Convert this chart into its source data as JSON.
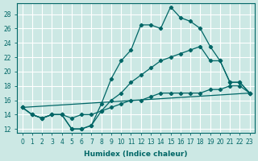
{
  "xlabel": "Humidex (Indice chaleur)",
  "bg_color": "#cce8e4",
  "grid_color": "#ffffff",
  "line_color": "#006666",
  "xlim": [
    -0.5,
    23.5
  ],
  "ylim": [
    11.5,
    29.5
  ],
  "yticks": [
    12,
    14,
    16,
    18,
    20,
    22,
    24,
    26,
    28
  ],
  "xticks": [
    0,
    1,
    2,
    3,
    4,
    5,
    6,
    7,
    8,
    9,
    10,
    11,
    12,
    13,
    14,
    15,
    16,
    17,
    18,
    19,
    20,
    21,
    22,
    23
  ],
  "series1_x": [
    0,
    1,
    2,
    3,
    4,
    5,
    6,
    7,
    8,
    9,
    10,
    11,
    12,
    13,
    14,
    15,
    16,
    17,
    18,
    19,
    20,
    21,
    22,
    23
  ],
  "series1_y": [
    15,
    14,
    13.5,
    14,
    14,
    12,
    12,
    12.5,
    15.5,
    19,
    21.5,
    23,
    26.5,
    26.5,
    26,
    29,
    27.5,
    27,
    26,
    23.5,
    21.5,
    18.5,
    18.5,
    17
  ],
  "series2_x": [
    0,
    1,
    2,
    3,
    4,
    5,
    6,
    7,
    8,
    9,
    10,
    11,
    12,
    13,
    14,
    15,
    16,
    17,
    18,
    19,
    20,
    21,
    22,
    23
  ],
  "series2_y": [
    15,
    14,
    13.5,
    14,
    14,
    12,
    12,
    12.5,
    14.5,
    16,
    17,
    18.5,
    19.5,
    20.5,
    21.5,
    22,
    22.5,
    23,
    23.5,
    21.5,
    21.5,
    18.5,
    18.5,
    17
  ],
  "series3_x": [
    0,
    1,
    2,
    3,
    4,
    5,
    6,
    7,
    8,
    9,
    10,
    11,
    12,
    13,
    14,
    15,
    16,
    17,
    18,
    19,
    20,
    21,
    22,
    23
  ],
  "series3_y": [
    15,
    14,
    13.5,
    14,
    14,
    13.5,
    14,
    14,
    14.5,
    15,
    15.5,
    16,
    16,
    16.5,
    17,
    17,
    17,
    17,
    17,
    17.5,
    17.5,
    18,
    18,
    17
  ],
  "series4_x": [
    0,
    23
  ],
  "series4_y": [
    15,
    17
  ]
}
